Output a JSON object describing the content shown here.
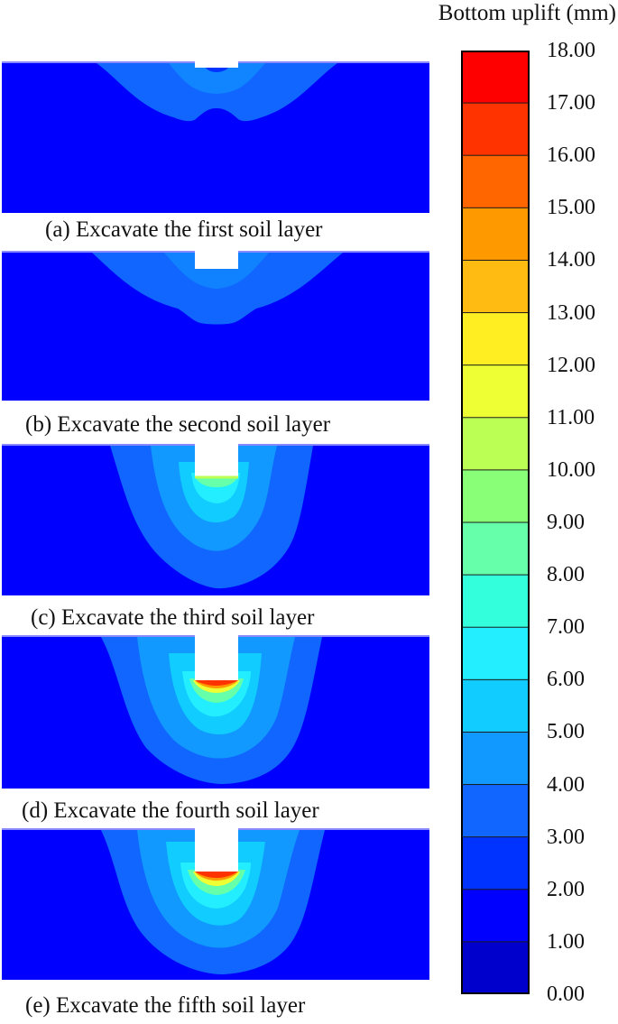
{
  "legend": {
    "title": "Bottom uplift (mm)",
    "ticks": [
      "18.00",
      "17.00",
      "16.00",
      "15.00",
      "14.00",
      "13.00",
      "12.00",
      "11.00",
      "10.00",
      "9.00",
      "8.00",
      "7.00",
      "6.00",
      "5.00",
      "4.00",
      "3.00",
      "2.00",
      "1.00",
      "0.00"
    ],
    "colors": [
      "#ff0000",
      "#ff3300",
      "#ff6600",
      "#ff9900",
      "#ffbb11",
      "#ffee22",
      "#eeff33",
      "#bbff55",
      "#88ff77",
      "#66ffaa",
      "#33ffdd",
      "#22eeff",
      "#11ccff",
      "#1199ff",
      "#1166ff",
      "#0033ff",
      "#0000ff",
      "#0000cc"
    ]
  },
  "panels": [
    {
      "caption": "(a) Excavate the first soil layer"
    },
    {
      "caption": "(b) Excavate the second soil layer"
    },
    {
      "caption": "(c) Excavate the third soil layer"
    },
    {
      "caption": "(d) Excavate the fourth soil layer"
    },
    {
      "caption": "(e) Excavate the fifth soil layer"
    }
  ]
}
